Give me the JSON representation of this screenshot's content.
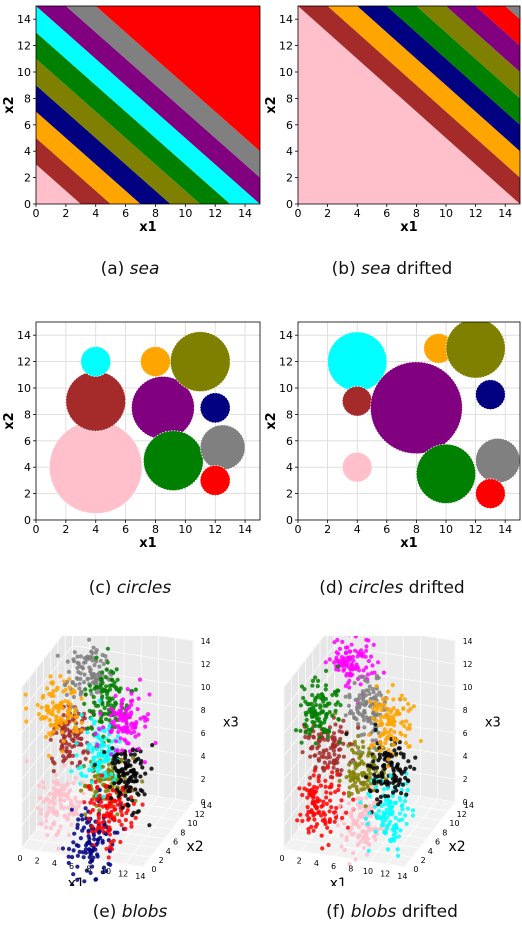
{
  "captions": {
    "a": {
      "label": "(a)",
      "name": "sea",
      "suffix": ""
    },
    "b": {
      "label": "(b)",
      "name": "sea",
      "suffix": " drifted"
    },
    "c": {
      "label": "(c)",
      "name": "circles",
      "suffix": ""
    },
    "d": {
      "label": "(d)",
      "name": "circles",
      "suffix": " drifted"
    },
    "e": {
      "label": "(e)",
      "name": "blobs",
      "suffix": ""
    },
    "f": {
      "label": "(f)",
      "name": "blobs",
      "suffix": " drifted"
    }
  },
  "colors": {
    "pink": "#ffc0cb",
    "brown": "#a52a2a",
    "orange": "#ffa500",
    "navy": "#000080",
    "olive": "#808000",
    "green": "#008000",
    "cyan": "#00ffff",
    "purple": "#800080",
    "gray": "#808080",
    "red": "#ff0000",
    "magenta": "#ff00ff",
    "black": "#000000"
  },
  "chart_data": [
    {
      "id": "sea",
      "type": "scatter",
      "xlabel": "x1",
      "ylabel": "x2",
      "xlim": [
        0,
        15
      ],
      "ylim": [
        0,
        15
      ],
      "xticks": [
        0,
        2,
        4,
        6,
        8,
        10,
        12,
        14
      ],
      "yticks": [
        0,
        2,
        4,
        6,
        8,
        10,
        12,
        14
      ],
      "grid": false,
      "bands_x1_plus_x2": [
        {
          "from": 0,
          "to": 3,
          "color": "pink"
        },
        {
          "from": 3,
          "to": 5,
          "color": "brown"
        },
        {
          "from": 5,
          "to": 7,
          "color": "orange"
        },
        {
          "from": 7,
          "to": 9,
          "color": "navy"
        },
        {
          "from": 9,
          "to": 11,
          "color": "olive"
        },
        {
          "from": 11,
          "to": 13,
          "color": "green"
        },
        {
          "from": 13,
          "to": 15,
          "color": "cyan"
        },
        {
          "from": 15,
          "to": 17,
          "color": "purple"
        },
        {
          "from": 17,
          "to": 19,
          "color": "gray"
        },
        {
          "from": 19,
          "to": 30,
          "color": "red"
        }
      ]
    },
    {
      "id": "sea_drifted",
      "type": "scatter",
      "xlabel": "x1",
      "ylabel": "x2",
      "xlim": [
        0,
        15
      ],
      "ylim": [
        0,
        15
      ],
      "xticks": [
        0,
        2,
        4,
        6,
        8,
        10,
        12,
        14
      ],
      "yticks": [
        0,
        2,
        4,
        6,
        8,
        10,
        12,
        14
      ],
      "grid": false,
      "bands_x1_plus_x2": [
        {
          "from": 0,
          "to": 15,
          "color": "pink"
        },
        {
          "from": 15,
          "to": 17,
          "color": "brown"
        },
        {
          "from": 17,
          "to": 19,
          "color": "orange"
        },
        {
          "from": 19,
          "to": 21,
          "color": "navy"
        },
        {
          "from": 21,
          "to": 23,
          "color": "green"
        },
        {
          "from": 23,
          "to": 25,
          "color": "olive"
        },
        {
          "from": 25,
          "to": 27,
          "color": "purple"
        },
        {
          "from": 27,
          "to": 29,
          "color": "red"
        },
        {
          "from": 29,
          "to": 30,
          "color": "gray"
        }
      ]
    },
    {
      "id": "circles",
      "type": "scatter",
      "xlabel": "x1",
      "ylabel": "x2",
      "xlim": [
        0,
        15
      ],
      "ylim": [
        0,
        15
      ],
      "xticks": [
        0,
        2,
        4,
        6,
        8,
        10,
        12,
        14
      ],
      "yticks": [
        0,
        2,
        4,
        6,
        8,
        10,
        12,
        14
      ],
      "grid": true,
      "circles": [
        {
          "cx": 4,
          "cy": 4,
          "r": 3.1,
          "color": "pink"
        },
        {
          "cx": 4,
          "cy": 9,
          "r": 2,
          "color": "brown"
        },
        {
          "cx": 4,
          "cy": 12,
          "r": 1,
          "color": "cyan"
        },
        {
          "cx": 8,
          "cy": 12,
          "r": 1,
          "color": "orange"
        },
        {
          "cx": 8.5,
          "cy": 8.5,
          "r": 2.1,
          "color": "purple"
        },
        {
          "cx": 11,
          "cy": 12,
          "r": 2,
          "color": "olive"
        },
        {
          "cx": 12,
          "cy": 8.5,
          "r": 1,
          "color": "navy"
        },
        {
          "cx": 9.2,
          "cy": 4.5,
          "r": 2,
          "color": "green"
        },
        {
          "cx": 12.5,
          "cy": 5.5,
          "r": 1.5,
          "color": "gray"
        },
        {
          "cx": 12,
          "cy": 3,
          "r": 1,
          "color": "red"
        }
      ]
    },
    {
      "id": "circles_drifted",
      "type": "scatter",
      "xlabel": "x1",
      "ylabel": "x2",
      "xlim": [
        0,
        15
      ],
      "ylim": [
        0,
        15
      ],
      "xticks": [
        0,
        2,
        4,
        6,
        8,
        10,
        12,
        14
      ],
      "yticks": [
        0,
        2,
        4,
        6,
        8,
        10,
        12,
        14
      ],
      "grid": true,
      "circles": [
        {
          "cx": 4,
          "cy": 12,
          "r": 2,
          "color": "cyan"
        },
        {
          "cx": 4,
          "cy": 9,
          "r": 1,
          "color": "brown"
        },
        {
          "cx": 4,
          "cy": 4,
          "r": 1,
          "color": "pink"
        },
        {
          "cx": 8,
          "cy": 8.5,
          "r": 3.1,
          "color": "purple"
        },
        {
          "cx": 9.5,
          "cy": 13,
          "r": 1,
          "color": "orange"
        },
        {
          "cx": 12,
          "cy": 13,
          "r": 2,
          "color": "olive"
        },
        {
          "cx": 13,
          "cy": 9.5,
          "r": 1,
          "color": "navy"
        },
        {
          "cx": 10,
          "cy": 3.5,
          "r": 2,
          "color": "green"
        },
        {
          "cx": 13.5,
          "cy": 4.5,
          "r": 1.5,
          "color": "gray"
        },
        {
          "cx": 13,
          "cy": 2,
          "r": 1,
          "color": "red"
        }
      ]
    },
    {
      "id": "blobs",
      "type": "scatter",
      "xlabel": "x1",
      "ylabel": "x2",
      "zlabel": "x3",
      "xlim": [
        0,
        14
      ],
      "ylim": [
        0,
        14
      ],
      "zlim": [
        0,
        14
      ],
      "xticks": [
        0,
        2,
        4,
        6,
        8,
        10,
        12,
        14
      ],
      "yticks": [
        0,
        2,
        4,
        6,
        8,
        10,
        12,
        14
      ],
      "zticks": [
        0,
        2,
        4,
        6,
        8,
        10,
        12,
        14
      ],
      "blobs": [
        {
          "x": 11,
          "y": 3,
          "z": 11,
          "color": "magenta"
        },
        {
          "x": 3,
          "y": 11,
          "z": 11,
          "color": "gray"
        },
        {
          "x": 3,
          "y": 3,
          "z": 11,
          "color": "orange"
        },
        {
          "x": 7,
          "y": 7,
          "z": 11,
          "color": "green"
        },
        {
          "x": 11,
          "y": 3,
          "z": 6,
          "color": "black"
        },
        {
          "x": 3,
          "y": 7,
          "z": 7,
          "color": "brown"
        },
        {
          "x": 7,
          "y": 5,
          "z": 7,
          "color": "cyan"
        },
        {
          "x": 9,
          "y": 3,
          "z": 3,
          "color": "red"
        },
        {
          "x": 7,
          "y": 7,
          "z": 4,
          "color": "olive"
        },
        {
          "x": 3,
          "y": 3,
          "z": 3,
          "color": "pink"
        },
        {
          "x": 7,
          "y": 3,
          "z": 0,
          "color": "navy"
        }
      ]
    },
    {
      "id": "blobs_drifted",
      "type": "scatter",
      "xlabel": "x1",
      "ylabel": "x2",
      "zlabel": "x3",
      "xlim": [
        0,
        14
      ],
      "ylim": [
        0,
        14
      ],
      "zlim": [
        0,
        14
      ],
      "xticks": [
        0,
        2,
        4,
        6,
        8,
        10,
        12,
        14
      ],
      "yticks": [
        0,
        2,
        4,
        6,
        8,
        10,
        12,
        14
      ],
      "zticks": [
        0,
        2,
        4,
        6,
        8,
        10,
        12,
        14
      ],
      "blobs": [
        {
          "x": 3,
          "y": 11,
          "z": 12,
          "color": "magenta"
        },
        {
          "x": 11,
          "y": 3,
          "z": 11,
          "color": "orange"
        },
        {
          "x": 3,
          "y": 3,
          "z": 11,
          "color": "green"
        },
        {
          "x": 7,
          "y": 7,
          "z": 10,
          "color": "gray"
        },
        {
          "x": 11,
          "y": 3,
          "z": 7,
          "color": "black"
        },
        {
          "x": 3,
          "y": 5,
          "z": 7,
          "color": "brown"
        },
        {
          "x": 7,
          "y": 6,
          "z": 5,
          "color": "olive"
        },
        {
          "x": 11,
          "y": 3,
          "z": 3,
          "color": "cyan"
        },
        {
          "x": 3,
          "y": 3,
          "z": 3,
          "color": "red"
        },
        {
          "x": 7,
          "y": 5,
          "z": 1,
          "color": "pink"
        }
      ]
    }
  ]
}
